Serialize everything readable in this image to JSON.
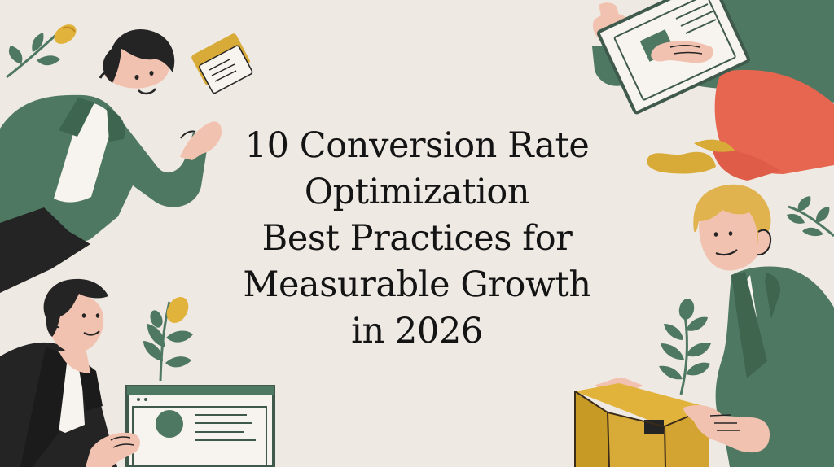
{
  "headline": {
    "lines": [
      "10 Conversion Rate",
      "Optimization",
      "Best Practices for",
      "Measurable Growth",
      "in 2026"
    ]
  },
  "palette": {
    "background": "#efe9e3",
    "green": "#4e7862",
    "dark": "#242424",
    "skin": "#f2c2b0",
    "mustard": "#d8ab39",
    "coral": "#e66650",
    "cream": "#f7f3ee"
  }
}
